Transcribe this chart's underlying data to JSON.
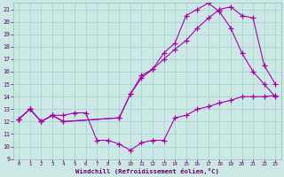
{
  "xlabel": "Windchill (Refroidissement éolien,°C)",
  "bg_color": "#cce8e4",
  "grid_color": "#aad4d0",
  "line_color": "#aa00aa",
  "xlim": [
    -0.5,
    23.5
  ],
  "ylim": [
    9,
    21.5
  ],
  "yticks": [
    9,
    10,
    11,
    12,
    13,
    14,
    15,
    16,
    17,
    18,
    19,
    20,
    21
  ],
  "xticks": [
    0,
    1,
    2,
    3,
    4,
    5,
    6,
    7,
    8,
    9,
    10,
    11,
    12,
    13,
    14,
    15,
    16,
    17,
    18,
    19,
    20,
    21,
    22,
    23
  ],
  "line1_x": [
    0,
    1,
    2,
    3,
    4,
    5,
    6,
    7,
    8,
    9,
    10,
    11,
    12,
    13,
    14,
    15,
    16,
    17,
    18,
    19,
    20,
    21,
    22,
    23
  ],
  "line1_y": [
    12.2,
    13.0,
    12.0,
    12.5,
    12.5,
    12.7,
    12.7,
    10.5,
    10.5,
    10.2,
    9.7,
    10.3,
    10.5,
    10.5,
    12.3,
    12.5,
    13.0,
    13.2,
    13.5,
    13.7,
    14.0,
    14.0,
    14.0,
    14.1
  ],
  "line2_x": [
    0,
    1,
    2,
    3,
    4,
    9,
    10,
    11,
    12,
    13,
    14,
    15,
    16,
    17,
    18,
    19,
    20,
    21,
    22,
    23
  ],
  "line2_y": [
    12.2,
    13.0,
    12.0,
    12.5,
    12.0,
    12.3,
    14.2,
    15.5,
    16.2,
    17.0,
    17.8,
    18.5,
    19.5,
    20.3,
    21.0,
    21.2,
    20.5,
    20.3,
    16.5,
    15.0
  ],
  "line3_x": [
    0,
    1,
    2,
    3,
    4,
    9,
    10,
    11,
    12,
    13,
    14,
    15,
    16,
    17,
    18,
    19,
    20,
    21,
    22,
    23
  ],
  "line3_y": [
    12.2,
    13.0,
    12.0,
    12.5,
    12.0,
    12.3,
    14.2,
    15.7,
    16.2,
    17.5,
    18.3,
    20.5,
    21.0,
    21.5,
    20.8,
    19.5,
    17.5,
    16.0,
    15.0,
    14.0
  ]
}
